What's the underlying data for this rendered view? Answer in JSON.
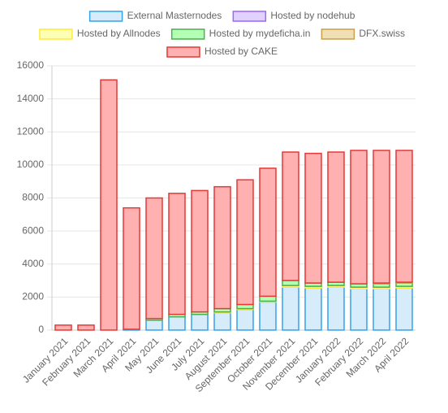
{
  "chart_data": {
    "type": "stacked_bar",
    "categories": [
      "January 2021",
      "February 2021",
      "March 2021",
      "April 2021",
      "May 2021",
      "June 2021",
      "July 2021",
      "August 2021",
      "September 2021",
      "October 2021",
      "November 2021",
      "December 2021",
      "January 2022",
      "February 2022",
      "March 2022",
      "April 2022"
    ],
    "series": [
      {
        "name": "External Masternodes",
        "color": "#36a2eb",
        "fill": "#d7ecfb",
        "values": [
          0,
          0,
          0,
          50,
          600,
          800,
          950,
          1050,
          1250,
          1700,
          2600,
          2550,
          2600,
          2500,
          2500,
          2550
        ]
      },
      {
        "name": "Hosted by nodehub",
        "color": "#9966ff",
        "fill": "#e0d1ff",
        "values": [
          0,
          0,
          0,
          0,
          0,
          0,
          0,
          0,
          0,
          0,
          0,
          0,
          0,
          0,
          0,
          0
        ]
      },
      {
        "name": "Hosted by Allnodes",
        "color": "#ffeb3b",
        "fill": "#ffffb3",
        "values": [
          0,
          0,
          0,
          0,
          0,
          0,
          0,
          50,
          50,
          50,
          100,
          100,
          100,
          100,
          100,
          100
        ]
      },
      {
        "name": "Hosted by mydeficha.in",
        "color": "#4caf50",
        "fill": "#b3ffb3",
        "values": [
          0,
          0,
          0,
          0,
          100,
          150,
          150,
          200,
          250,
          300,
          300,
          200,
          200,
          200,
          200,
          200
        ]
      },
      {
        "name": "DFX.swiss",
        "color": "#c9a04a",
        "fill": "#f0dfb4",
        "values": [
          0,
          0,
          0,
          0,
          0,
          0,
          0,
          0,
          0,
          0,
          0,
          0,
          0,
          0,
          50,
          50
        ]
      },
      {
        "name": "Hosted by CAKE",
        "color": "#e53935",
        "fill": "#ffb1b1",
        "values": [
          300,
          300,
          15150,
          7350,
          7300,
          7330,
          7350,
          7380,
          7550,
          7750,
          7780,
          7850,
          7880,
          8080,
          8030,
          7980
        ]
      }
    ],
    "ylim": [
      0,
      16000
    ],
    "yticks": [
      0,
      2000,
      4000,
      6000,
      8000,
      10000,
      12000,
      14000,
      16000
    ],
    "grid": true,
    "legend": "top"
  }
}
